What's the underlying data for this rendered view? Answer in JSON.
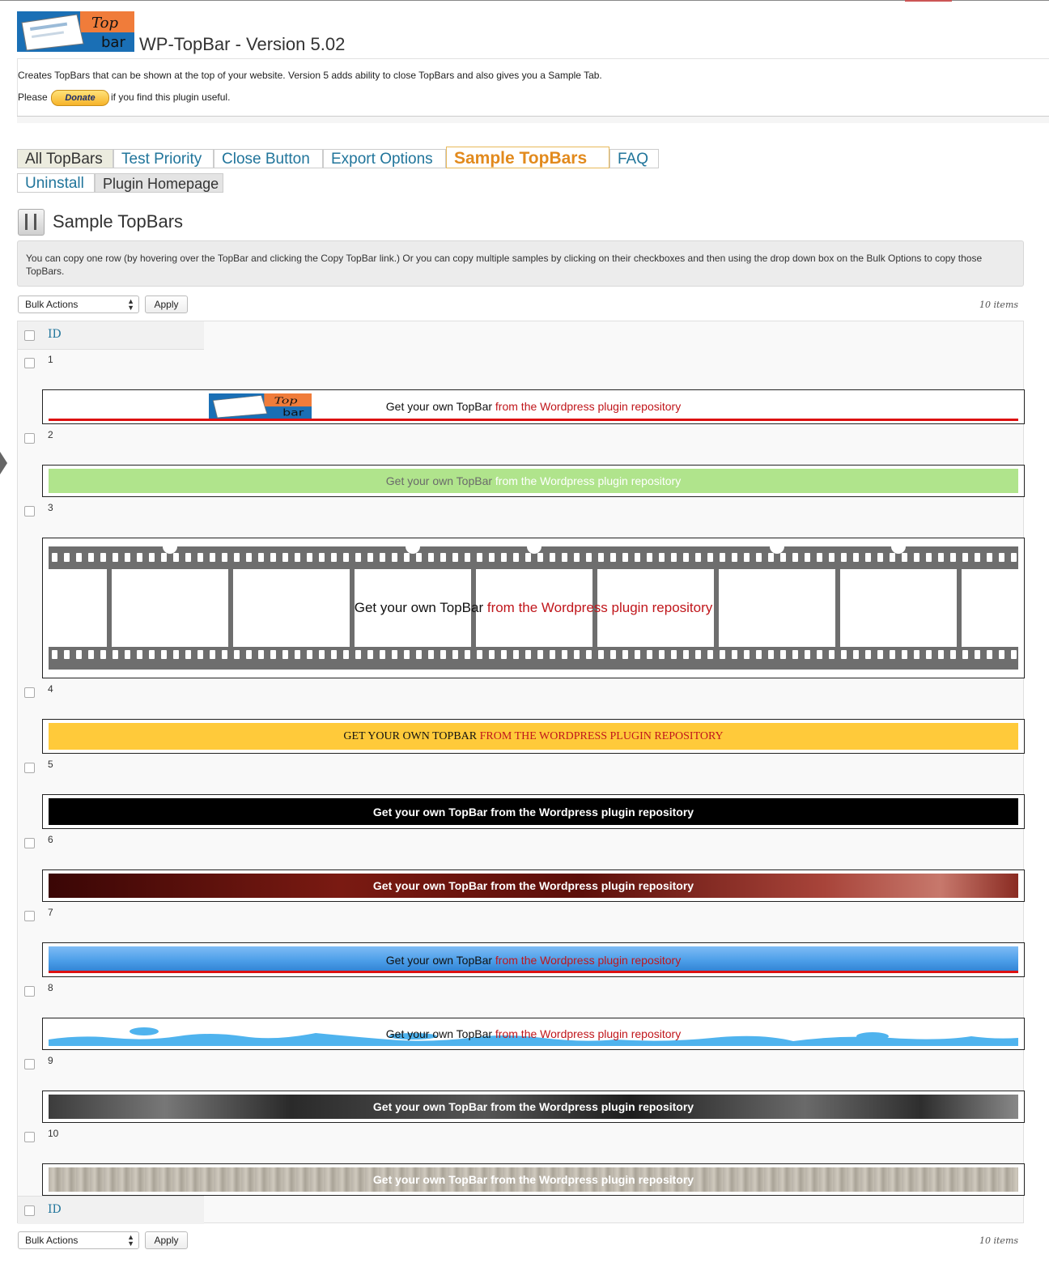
{
  "header": {
    "title": "WP-TopBar - Version 5.02",
    "logo_text": "Top bar",
    "description": "Creates TopBars that can be shown at the top of your website. Version 5 adds ability to close TopBars and also gives you a Sample Tab.",
    "please": "Please",
    "donate": "Donate",
    "after_donate": "if you find this plugin useful."
  },
  "tabs": [
    {
      "label": "All TopBars"
    },
    {
      "label": "Test Priority"
    },
    {
      "label": "Close Button"
    },
    {
      "label": "Export Options"
    },
    {
      "label": "Sample TopBars"
    },
    {
      "label": "FAQ"
    },
    {
      "label": "Uninstall"
    },
    {
      "label": "Plugin Homepage"
    }
  ],
  "section": {
    "title": "Sample TopBars",
    "info": "You can copy one row (by hovering over the TopBar and clicking the Copy TopBar link.) Or you can copy multiple samples by clicking on their checkboxes and then using the drop down box on the Bulk Options to copy those TopBars."
  },
  "bulk": {
    "label": "Bulk Actions",
    "apply": "Apply",
    "count": "10 items"
  },
  "table": {
    "id_header": "ID",
    "bar_text_1": "Get your own TopBar ",
    "bar_text_2": "from the Wordpress plugin repository",
    "bar_caps_1": "GET YOUR OWN TOPBAR ",
    "bar_caps_2": "FROM THE WORDPRESS PLUGIN REPOSITORY",
    "bar_full": "Get your own TopBar from the Wordpress plugin repository",
    "rows": [
      {
        "id": "1"
      },
      {
        "id": "2"
      },
      {
        "id": "3"
      },
      {
        "id": "4"
      },
      {
        "id": "5"
      },
      {
        "id": "6"
      },
      {
        "id": "7"
      },
      {
        "id": "8"
      },
      {
        "id": "9"
      },
      {
        "id": "10"
      }
    ]
  },
  "colors": {
    "link": "#21759b",
    "active_tab": "#e28a1d",
    "red_text": "#c0161b",
    "bar2_bg": "#b0e48c",
    "bar4_bg": "#ffca3a",
    "bar7_blue": "#4a9de8"
  }
}
